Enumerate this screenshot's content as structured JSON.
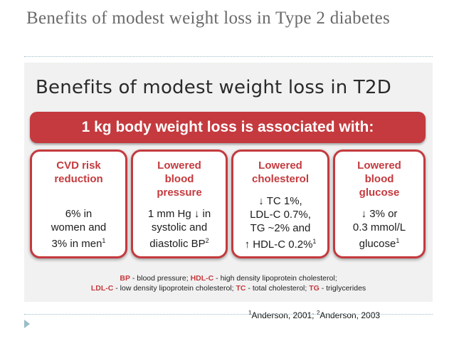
{
  "slide": {
    "title": "Benefits of modest weight loss in Type 2 diabetes"
  },
  "figure": {
    "title": "Benefits of modest weight loss in T2D",
    "banner": "1 kg body weight loss is associated with:",
    "cards": [
      {
        "heading": [
          "CVD risk",
          "reduction"
        ],
        "body": [
          [
            "6% in",
            ""
          ],
          [
            "women and",
            ""
          ],
          [
            "3% in men",
            "1"
          ]
        ]
      },
      {
        "heading": [
          "Lowered",
          "blood",
          "pressure"
        ],
        "body": [
          [
            "1 mm Hg ↓ in",
            ""
          ],
          [
            "systolic and",
            ""
          ],
          [
            "diastolic BP",
            "2"
          ]
        ]
      },
      {
        "heading": [
          "Lowered",
          "cholesterol"
        ],
        "body": [
          [
            "↓ TC 1%,",
            ""
          ],
          [
            "LDL-C 0.7%,",
            ""
          ],
          [
            "TG ~2% and",
            ""
          ],
          [
            "↑ HDL-C 0.2%",
            "1"
          ]
        ]
      },
      {
        "heading": [
          "Lowered",
          "blood",
          "glucose"
        ],
        "body": [
          [
            "↓ 3% or",
            ""
          ],
          [
            "0.3 mmol/L",
            ""
          ],
          [
            "glucose",
            "1"
          ]
        ]
      }
    ],
    "abbreviations_line1": [
      {
        "abbr": "BP",
        "def": " - blood pressure;  "
      },
      {
        "abbr": "HDL-C",
        "def": " - high density lipoprotein cholesterol;"
      }
    ],
    "abbreviations_line2": [
      {
        "abbr": "LDL-C",
        "def": " - low density lipoprotein cholesterol;  "
      },
      {
        "abbr": "TC",
        "def": " - total cholesterol;  "
      },
      {
        "abbr": "TG",
        "def": " - triglycerides"
      }
    ]
  },
  "references": {
    "ref1_sup": "1",
    "ref1": "Anderson, 2001; ",
    "ref2_sup": "2",
    "ref2": "Anderson, 2003"
  },
  "colors": {
    "accent_red": "#c43a3e",
    "title_gray": "#6a6a6a",
    "rule_blue": "#9bbcc8"
  }
}
